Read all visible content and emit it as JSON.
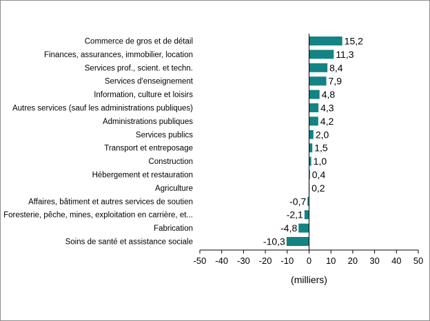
{
  "chart_data": {
    "type": "bar",
    "orientation": "horizontal",
    "categories": [
      "Commerce de gros et de détail",
      "Finances, assurances, immobilier, location",
      "Services prof., scient. et techn.",
      "Services d'enseignement",
      "Information, culture et loisirs",
      "Autres services (sauf les administrations publiques)",
      "Administrations publiques",
      "Services publics",
      "Transport et entreposage",
      "Construction",
      "Hébergement et restauration",
      "Agriculture",
      "Affaires, bâtiment et autres services de soutien",
      "Foresterie, pêche, mines, exploitation en carrière, et...",
      "Fabrication",
      "Soins de santé et assistance sociale"
    ],
    "values": [
      15.2,
      11.3,
      8.4,
      7.9,
      4.8,
      4.3,
      4.2,
      2.0,
      1.5,
      1.0,
      0.4,
      0.2,
      -0.7,
      -2.1,
      -4.8,
      -10.3
    ],
    "value_labels": [
      "15,2",
      "11,3",
      "8,4",
      "7,9",
      "4,8",
      "4,3",
      "4,2",
      "2,0",
      "1,5",
      "1,0",
      "0,4",
      "0,2",
      "-0,7",
      "-2,1",
      "-4,8",
      "-10,3"
    ],
    "xlabel": "(milliers)",
    "xlim": [
      -50,
      50
    ],
    "xticks": [
      -50,
      -40,
      -30,
      -20,
      -10,
      0,
      10,
      20,
      30,
      40,
      50
    ],
    "bar_color": "#138383",
    "grid": false
  }
}
